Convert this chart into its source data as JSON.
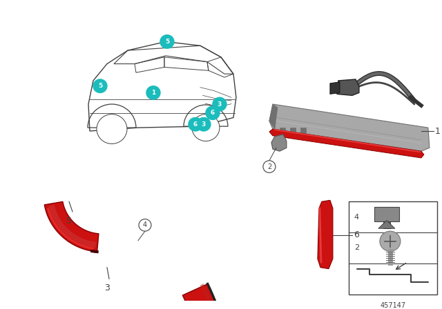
{
  "background_color": "#ffffff",
  "figure_width": 6.4,
  "figure_height": 4.48,
  "dpi": 100,
  "part_number": "457147",
  "teal_color": "#1BBCBC",
  "red_color": "#CC1111",
  "red_dark": "#880000",
  "red_light": "#FF5555",
  "gray_housing": "#A8A8A8",
  "gray_dark": "#707070",
  "gray_mid": "#909090",
  "line_color": "#404040",
  "black": "#111111",
  "white": "#ffffff"
}
